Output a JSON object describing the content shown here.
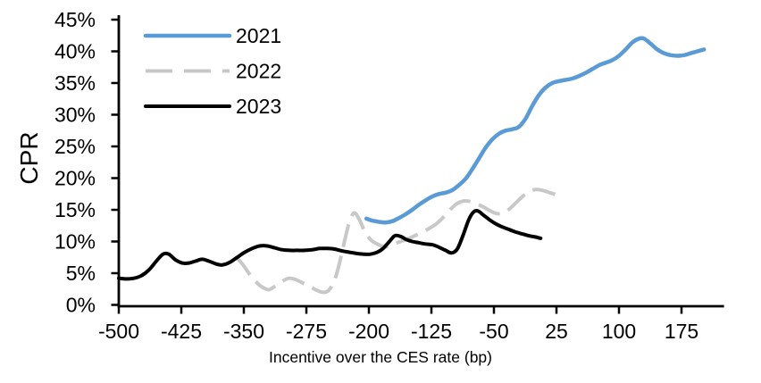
{
  "page": {
    "background": "#ffffff"
  },
  "chart_data": {
    "type": "line",
    "title": "",
    "xlabel": "Incentive over the CES rate (bp)",
    "ylabel": "CPR",
    "xlim": [
      -500,
      226
    ],
    "ylim": [
      0,
      45
    ],
    "x_ticks": [
      -500,
      -425,
      -350,
      -275,
      -200,
      -125,
      -50,
      25,
      100,
      175
    ],
    "y_ticks": [
      0,
      5,
      10,
      15,
      20,
      25,
      30,
      35,
      40,
      45
    ],
    "y_tick_suffix": "%",
    "grid": false,
    "legend_position": "top-left-inside",
    "axis_color": "#000000",
    "series": [
      {
        "name": "2021",
        "color": "#5B9BD5",
        "style": "solid",
        "width": 4.5,
        "z": 2,
        "points": [
          [
            -203,
            13.6
          ],
          [
            -196,
            13.3
          ],
          [
            -188,
            13.1
          ],
          [
            -180,
            13.0
          ],
          [
            -172,
            13.2
          ],
          [
            -164,
            13.7
          ],
          [
            -156,
            14.3
          ],
          [
            -148,
            15.0
          ],
          [
            -140,
            15.8
          ],
          [
            -132,
            16.5
          ],
          [
            -124,
            17.1
          ],
          [
            -116,
            17.5
          ],
          [
            -108,
            17.7
          ],
          [
            -100,
            18.1
          ],
          [
            -92,
            18.9
          ],
          [
            -84,
            19.9
          ],
          [
            -76,
            21.4
          ],
          [
            -68,
            23.1
          ],
          [
            -60,
            24.8
          ],
          [
            -52,
            26.1
          ],
          [
            -44,
            27.0
          ],
          [
            -36,
            27.5
          ],
          [
            -28,
            27.7
          ],
          [
            -20,
            28.1
          ],
          [
            -12,
            29.4
          ],
          [
            -4,
            31.4
          ],
          [
            4,
            33.1
          ],
          [
            12,
            34.3
          ],
          [
            20,
            35.0
          ],
          [
            28,
            35.3
          ],
          [
            36,
            35.5
          ],
          [
            44,
            35.7
          ],
          [
            52,
            36.1
          ],
          [
            60,
            36.6
          ],
          [
            68,
            37.2
          ],
          [
            76,
            37.8
          ],
          [
            84,
            38.2
          ],
          [
            92,
            38.6
          ],
          [
            100,
            39.3
          ],
          [
            108,
            40.3
          ],
          [
            116,
            41.4
          ],
          [
            124,
            42.0
          ],
          [
            130,
            42.0
          ],
          [
            138,
            41.2
          ],
          [
            146,
            40.3
          ],
          [
            154,
            39.7
          ],
          [
            162,
            39.4
          ],
          [
            170,
            39.3
          ],
          [
            178,
            39.4
          ],
          [
            186,
            39.7
          ],
          [
            194,
            40.0
          ],
          [
            202,
            40.3
          ]
        ]
      },
      {
        "name": "2022",
        "color": "#C8C8C8",
        "style": "dashed",
        "width": 4,
        "z": 1,
        "points": [
          [
            -360,
            7.6
          ],
          [
            -352,
            6.5
          ],
          [
            -344,
            5.0
          ],
          [
            -336,
            3.7
          ],
          [
            -328,
            2.8
          ],
          [
            -320,
            2.4
          ],
          [
            -312,
            3.0
          ],
          [
            -304,
            3.7
          ],
          [
            -296,
            4.2
          ],
          [
            -288,
            4.0
          ],
          [
            -280,
            3.5
          ],
          [
            -272,
            3.0
          ],
          [
            -264,
            2.4
          ],
          [
            -256,
            2.0
          ],
          [
            -249,
            2.2
          ],
          [
            -242,
            3.6
          ],
          [
            -236,
            6.2
          ],
          [
            -230,
            9.6
          ],
          [
            -224,
            12.8
          ],
          [
            -218,
            14.5
          ],
          [
            -212,
            13.6
          ],
          [
            -205,
            11.6
          ],
          [
            -198,
            10.3
          ],
          [
            -190,
            9.6
          ],
          [
            -182,
            9.2
          ],
          [
            -174,
            9.3
          ],
          [
            -166,
            9.8
          ],
          [
            -158,
            10.2
          ],
          [
            -150,
            10.6
          ],
          [
            -142,
            11.1
          ],
          [
            -134,
            11.6
          ],
          [
            -126,
            12.2
          ],
          [
            -118,
            12.9
          ],
          [
            -110,
            13.9
          ],
          [
            -102,
            15.1
          ],
          [
            -94,
            16.0
          ],
          [
            -86,
            16.4
          ],
          [
            -78,
            16.3
          ],
          [
            -70,
            15.9
          ],
          [
            -62,
            15.4
          ],
          [
            -54,
            14.8
          ],
          [
            -46,
            14.4
          ],
          [
            -38,
            14.5
          ],
          [
            -30,
            15.3
          ],
          [
            -22,
            16.3
          ],
          [
            -14,
            17.3
          ],
          [
            -6,
            18.0
          ],
          [
            2,
            18.2
          ],
          [
            10,
            18.0
          ],
          [
            17,
            17.7
          ],
          [
            24,
            17.4
          ]
        ]
      },
      {
        "name": "2023",
        "color": "#000000",
        "style": "solid",
        "width": 4,
        "z": 3,
        "points": [
          [
            -500,
            4.2
          ],
          [
            -491,
            4.1
          ],
          [
            -482,
            4.2
          ],
          [
            -473,
            4.6
          ],
          [
            -464,
            5.5
          ],
          [
            -455,
            6.9
          ],
          [
            -447,
            8.0
          ],
          [
            -440,
            8.0
          ],
          [
            -432,
            7.1
          ],
          [
            -424,
            6.6
          ],
          [
            -416,
            6.6
          ],
          [
            -408,
            6.9
          ],
          [
            -400,
            7.2
          ],
          [
            -392,
            6.9
          ],
          [
            -384,
            6.5
          ],
          [
            -376,
            6.3
          ],
          [
            -367,
            6.7
          ],
          [
            -358,
            7.5
          ],
          [
            -349,
            8.3
          ],
          [
            -340,
            8.9
          ],
          [
            -331,
            9.3
          ],
          [
            -322,
            9.3
          ],
          [
            -313,
            9.0
          ],
          [
            -304,
            8.7
          ],
          [
            -295,
            8.6
          ],
          [
            -286,
            8.6
          ],
          [
            -277,
            8.6
          ],
          [
            -268,
            8.7
          ],
          [
            -259,
            8.9
          ],
          [
            -250,
            8.9
          ],
          [
            -241,
            8.8
          ],
          [
            -232,
            8.5
          ],
          [
            -223,
            8.3
          ],
          [
            -214,
            8.1
          ],
          [
            -206,
            8.0
          ],
          [
            -198,
            8.0
          ],
          [
            -190,
            8.3
          ],
          [
            -183,
            8.9
          ],
          [
            -176,
            9.9
          ],
          [
            -169,
            10.9
          ],
          [
            -162,
            10.8
          ],
          [
            -155,
            10.3
          ],
          [
            -148,
            10.0
          ],
          [
            -140,
            9.8
          ],
          [
            -132,
            9.6
          ],
          [
            -124,
            9.5
          ],
          [
            -116,
            9.1
          ],
          [
            -108,
            8.6
          ],
          [
            -101,
            8.2
          ],
          [
            -94,
            8.8
          ],
          [
            -87,
            11.0
          ],
          [
            -80,
            13.5
          ],
          [
            -74,
            14.7
          ],
          [
            -69,
            14.8
          ],
          [
            -63,
            14.2
          ],
          [
            -56,
            13.5
          ],
          [
            -48,
            12.8
          ],
          [
            -40,
            12.3
          ],
          [
            -32,
            11.9
          ],
          [
            -24,
            11.5
          ],
          [
            -16,
            11.2
          ],
          [
            -8,
            10.9
          ],
          [
            0,
            10.7
          ],
          [
            6,
            10.5
          ]
        ]
      }
    ]
  }
}
